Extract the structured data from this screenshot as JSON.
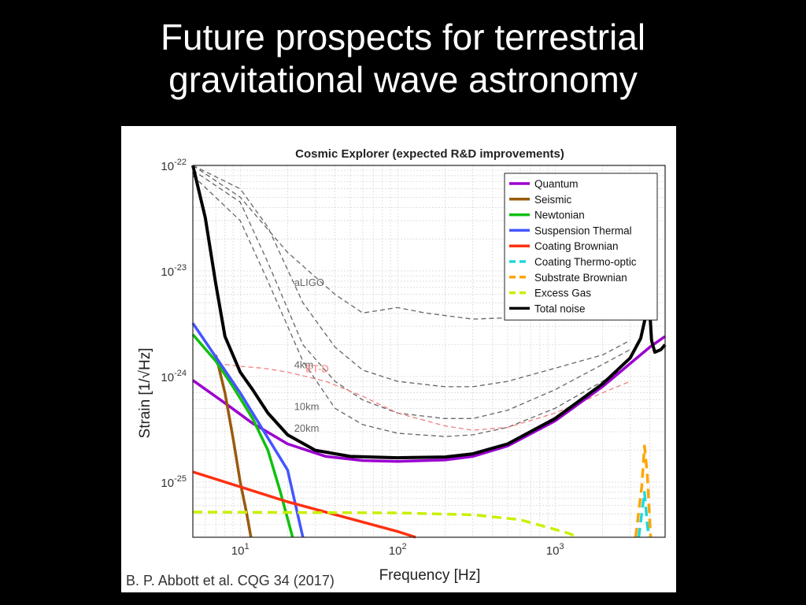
{
  "slide": {
    "title_line1": "Future prospects for terrestrial",
    "title_line2": "gravitational wave astronomy",
    "citation": "B. P. Abbott et al. CQG 34 (2017)"
  },
  "chart_data": {
    "type": "line",
    "title": "Cosmic Explorer (expected R&D improvements)",
    "xlabel": "Frequency [Hz]",
    "ylabel": "Strain [1/√Hz]",
    "xscale": "log",
    "yscale": "log",
    "xlim": [
      5,
      5000
    ],
    "ylim": [
      3e-26,
      1e-22
    ],
    "grid": true,
    "legend_position": "top-right",
    "x_ticks": [
      {
        "value": 10,
        "base": "10",
        "exp": "1"
      },
      {
        "value": 100,
        "base": "10",
        "exp": "2"
      },
      {
        "value": 1000,
        "base": "10",
        "exp": "3"
      }
    ],
    "y_ticks": [
      {
        "value": 1e-25,
        "base": "10",
        "exp": "-25"
      },
      {
        "value": 1e-24,
        "base": "10",
        "exp": "-24"
      },
      {
        "value": 1e-23,
        "base": "10",
        "exp": "-23"
      },
      {
        "value": 1e-22,
        "base": "10",
        "exp": "-22"
      }
    ],
    "series": [
      {
        "name": "Quantum",
        "color": "#9b00d0",
        "style": "solid",
        "points": [
          [
            5,
            9.2e-25
          ],
          [
            8,
            5.6e-25
          ],
          [
            12,
            3.6e-25
          ],
          [
            20,
            2.3e-25
          ],
          [
            35,
            1.75e-25
          ],
          [
            60,
            1.6e-25
          ],
          [
            100,
            1.57e-25
          ],
          [
            200,
            1.62e-25
          ],
          [
            300,
            1.75e-25
          ],
          [
            500,
            2.2e-25
          ],
          [
            1000,
            3.8e-25
          ],
          [
            2000,
            8e-25
          ],
          [
            4000,
            1.9e-24
          ],
          [
            5000,
            2.4e-24
          ]
        ]
      },
      {
        "name": "Seismic",
        "color": "#9a5a0d",
        "style": "solid",
        "points": [
          [
            7,
            1.6e-24
          ],
          [
            8,
            7e-25
          ],
          [
            9,
            2.6e-25
          ],
          [
            10,
            1e-25
          ],
          [
            11,
            5e-26
          ],
          [
            11.7,
            3e-26
          ]
        ]
      },
      {
        "name": "Newtonian",
        "color": "#10c010",
        "style": "solid",
        "points": [
          [
            5,
            2.5e-24
          ],
          [
            7,
            1.4e-24
          ],
          [
            9,
            8e-25
          ],
          [
            12,
            4e-25
          ],
          [
            15,
            2e-25
          ],
          [
            18,
            8e-26
          ],
          [
            20,
            4.5e-26
          ],
          [
            21.5,
            3e-26
          ]
        ]
      },
      {
        "name": "Suspension Thermal",
        "color": "#4455ff",
        "style": "solid",
        "points": [
          [
            5,
            3.2e-24
          ],
          [
            10,
            7e-25
          ],
          [
            20,
            1.3e-25
          ],
          [
            25,
            3e-26
          ]
        ]
      },
      {
        "name": "Coating Brownian",
        "color": "#ff3010",
        "style": "solid",
        "points": [
          [
            5,
            1.25e-25
          ],
          [
            20,
            6.5e-26
          ],
          [
            100,
            3.4e-26
          ],
          [
            130,
            3e-26
          ]
        ]
      },
      {
        "name": "Coating Thermo-optic",
        "color": "#20d8d8",
        "style": "dashed",
        "points": [
          [
            3400,
            3e-26
          ],
          [
            3700,
            8e-26
          ],
          [
            3850,
            4e-26
          ],
          [
            3950,
            3e-26
          ]
        ]
      },
      {
        "name": "Substrate Brownian",
        "color": "#ffa500",
        "style": "dashed",
        "points": [
          [
            3250,
            3e-26
          ],
          [
            3550,
            9e-26
          ],
          [
            3700,
            2.2e-25
          ],
          [
            3850,
            1.2e-25
          ],
          [
            4050,
            3e-26
          ]
        ]
      },
      {
        "name": "Excess Gas",
        "color": "#c9f000",
        "style": "dashed",
        "points": [
          [
            5,
            5.2e-26
          ],
          [
            100,
            5.1e-26
          ],
          [
            300,
            4.9e-26
          ],
          [
            600,
            4.4e-26
          ],
          [
            1200,
            3.3e-26
          ],
          [
            1400,
            3e-26
          ]
        ]
      },
      {
        "name": "Total noise",
        "color": "#000000",
        "style": "solid",
        "points": [
          [
            5,
            1e-22
          ],
          [
            6,
            3.2e-23
          ],
          [
            7,
            7.5e-24
          ],
          [
            8,
            2.4e-24
          ],
          [
            10,
            1.1e-24
          ],
          [
            12,
            7.5e-25
          ],
          [
            15,
            4.5e-25
          ],
          [
            20,
            2.8e-25
          ],
          [
            30,
            2e-25
          ],
          [
            50,
            1.75e-25
          ],
          [
            100,
            1.7e-25
          ],
          [
            200,
            1.73e-25
          ],
          [
            300,
            1.85e-25
          ],
          [
            500,
            2.3e-25
          ],
          [
            1000,
            4e-25
          ],
          [
            2000,
            8.5e-25
          ],
          [
            3000,
            1.5e-24
          ],
          [
            3500,
            2.3e-24
          ],
          [
            3800,
            4e-24
          ],
          [
            3950,
            5.5e-24
          ],
          [
            4100,
            2.2e-24
          ],
          [
            4300,
            1.7e-24
          ],
          [
            4700,
            1.8e-24
          ],
          [
            5000,
            2e-24
          ]
        ]
      }
    ],
    "reference_curves": [
      {
        "label": "aLIGO",
        "color": "#666666",
        "label_at": [
          22,
          7.2e-24
        ],
        "points": [
          [
            5,
            1e-22
          ],
          [
            10,
            5e-23
          ],
          [
            20,
            1.5e-23
          ],
          [
            40,
            6e-24
          ],
          [
            60,
            4e-24
          ],
          [
            100,
            4.5e-24
          ],
          [
            150,
            4e-24
          ],
          [
            300,
            3.5e-24
          ],
          [
            500,
            3.6e-24
          ],
          [
            1000,
            4.5e-24
          ],
          [
            2000,
            7e-24
          ],
          [
            3000,
            1e-23
          ]
        ]
      },
      {
        "label": "4km",
        "color": "#666666",
        "label_at": [
          22,
          1.2e-24
        ],
        "points": [
          [
            5,
            1e-22
          ],
          [
            10,
            6e-23
          ],
          [
            15,
            2.6e-23
          ],
          [
            25,
            5e-24
          ],
          [
            40,
            1.9e-24
          ],
          [
            60,
            1.15e-24
          ],
          [
            100,
            9e-25
          ],
          [
            200,
            8e-25
          ],
          [
            300,
            8e-25
          ],
          [
            500,
            9e-25
          ],
          [
            1000,
            1.2e-24
          ],
          [
            2000,
            1.6e-24
          ],
          [
            3000,
            2.2e-24
          ]
        ]
      },
      {
        "label": "10km",
        "color": "#666666",
        "label_at": [
          22,
          4.8e-25
        ],
        "points": [
          [
            5,
            9e-23
          ],
          [
            10,
            4.5e-23
          ],
          [
            15,
            1.2e-23
          ],
          [
            25,
            2e-24
          ],
          [
            40,
            9e-25
          ],
          [
            60,
            6e-25
          ],
          [
            100,
            4.5e-25
          ],
          [
            200,
            4e-25
          ],
          [
            300,
            4e-25
          ],
          [
            500,
            4.8e-25
          ],
          [
            1000,
            7.5e-25
          ],
          [
            2000,
            1.3e-24
          ],
          [
            3000,
            1.8e-24
          ]
        ]
      },
      {
        "label": "20km",
        "color": "#666666",
        "label_at": [
          22,
          3e-25
        ],
        "points": [
          [
            5,
            8e-23
          ],
          [
            10,
            3e-23
          ],
          [
            15,
            8e-24
          ],
          [
            25,
            1.4e-24
          ],
          [
            40,
            5e-25
          ],
          [
            60,
            3.5e-25
          ],
          [
            100,
            2.9e-25
          ],
          [
            200,
            2.7e-25
          ],
          [
            300,
            2.8e-25
          ],
          [
            500,
            3.3e-25
          ],
          [
            1000,
            5e-25
          ],
          [
            2000,
            9e-25
          ],
          [
            3000,
            1.3e-24
          ]
        ]
      },
      {
        "label": "ET-D",
        "color": "#f08080",
        "label_at": [
          26,
          1.1e-24
        ],
        "points": [
          [
            8,
            1.3e-24
          ],
          [
            10,
            1.25e-24
          ],
          [
            14,
            1.2e-24
          ],
          [
            20,
            1.1e-24
          ],
          [
            35,
            9e-25
          ],
          [
            60,
            6.5e-25
          ],
          [
            100,
            4.5e-25
          ],
          [
            200,
            3.4e-25
          ],
          [
            300,
            3.1e-25
          ],
          [
            500,
            3.3e-25
          ],
          [
            1000,
            4.5e-25
          ],
          [
            2000,
            7e-25
          ],
          [
            3000,
            9e-25
          ]
        ]
      }
    ]
  }
}
